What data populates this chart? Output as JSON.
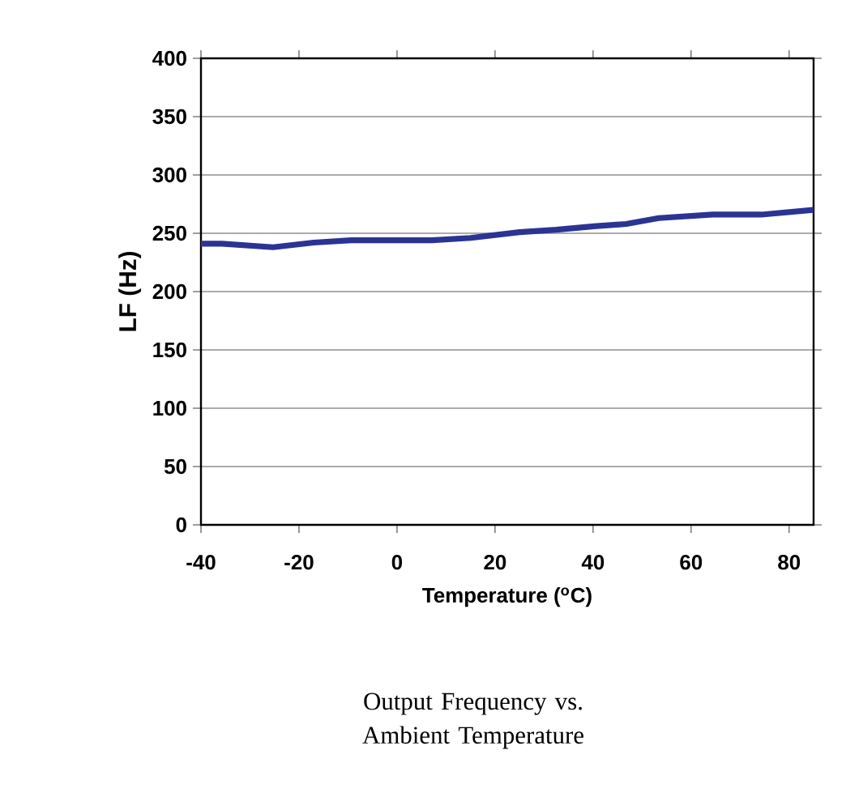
{
  "chart_data": {
    "type": "line",
    "title": "Output Frequency vs. Ambient Temperature",
    "xlabel": "Temperature ($^{o}$C)",
    "ylabel": "LF (Hz)",
    "x": [
      -40,
      -35.7,
      -25.3,
      -17,
      -9.3,
      7.2,
      15,
      25,
      32.5,
      40.2,
      46.8,
      53.4,
      64.4,
      74.3,
      85
    ],
    "series": [
      {
        "color": "#2b3494",
        "values": [
          241,
          241,
          238,
          242,
          244,
          244,
          246,
          251,
          253,
          256,
          258,
          263,
          266,
          266,
          270
        ]
      }
    ],
    "xlim": [
      -40,
      85
    ],
    "xticks": [
      -40,
      -20,
      0,
      20,
      40,
      60,
      80
    ],
    "ylim": [
      0,
      400
    ],
    "yticks": [
      0,
      50,
      100,
      150,
      200,
      250,
      300,
      350,
      400
    ],
    "grid": "y",
    "marker": "none",
    "line_style": "solid"
  }
}
